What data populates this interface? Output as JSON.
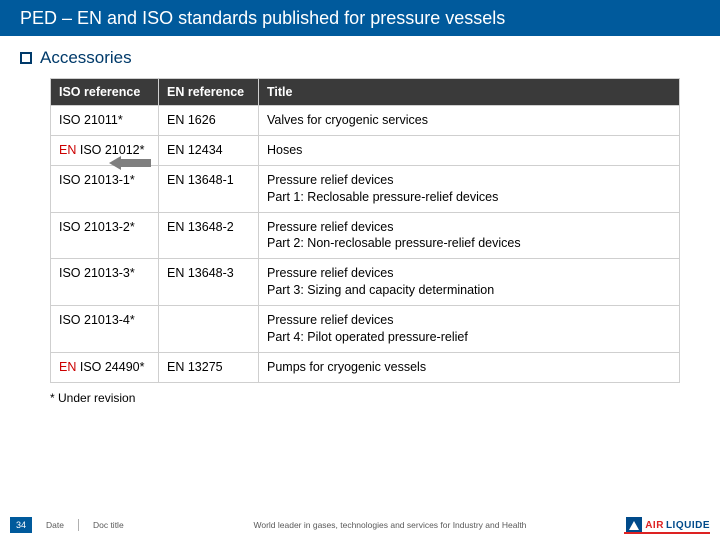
{
  "title": "PED – EN and ISO standards published for pressure vessels",
  "section": "Accessories",
  "table": {
    "headers": [
      "ISO reference",
      "EN reference",
      "Title"
    ],
    "rows": [
      {
        "iso": "ISO 21011*",
        "en": "EN 1626",
        "title": "Valves for cryogenic services"
      },
      {
        "iso_prefix": "EN",
        "iso_rest": " ISO 21012*",
        "en": "EN 12434",
        "title": "Hoses",
        "arrow": true
      },
      {
        "iso": "ISO 21013-1*",
        "en": "EN 13648-1",
        "title": "Pressure relief devices\nPart 1: Reclosable pressure-relief devices"
      },
      {
        "iso": "ISO 21013-2*",
        "en": "EN 13648-2",
        "title": "Pressure relief devices\nPart 2: Non-reclosable pressure-relief devices"
      },
      {
        "iso": "ISO 21013-3*",
        "en": "EN 13648-3",
        "title": "Pressure relief devices\nPart 3: Sizing and capacity determination"
      },
      {
        "iso": "ISO 21013-4*",
        "en": "",
        "title": "Pressure relief devices\nPart 4: Pilot operated pressure-relief"
      },
      {
        "iso_prefix": "EN",
        "iso_rest": " ISO 24490*",
        "en": "EN 13275",
        "title": "Pumps for cryogenic vessels"
      }
    ]
  },
  "footnote": "* Under revision",
  "footer": {
    "page": "34",
    "date_label": "Date",
    "doc_label": "Doc title",
    "tagline": "World leader in gases, technologies and services for Industry and Health",
    "logo_part1": "AIR",
    "logo_part2": "LIQUIDE"
  },
  "colors": {
    "header_bg": "#005a9c",
    "section_text": "#003a6a",
    "th_bg": "#3a3a3a",
    "border": "#cfcfcf",
    "en_highlight": "#cc0000",
    "arrow": "#7f7f7f",
    "logo_red": "#d22",
    "logo_blue": "#004a8a"
  }
}
